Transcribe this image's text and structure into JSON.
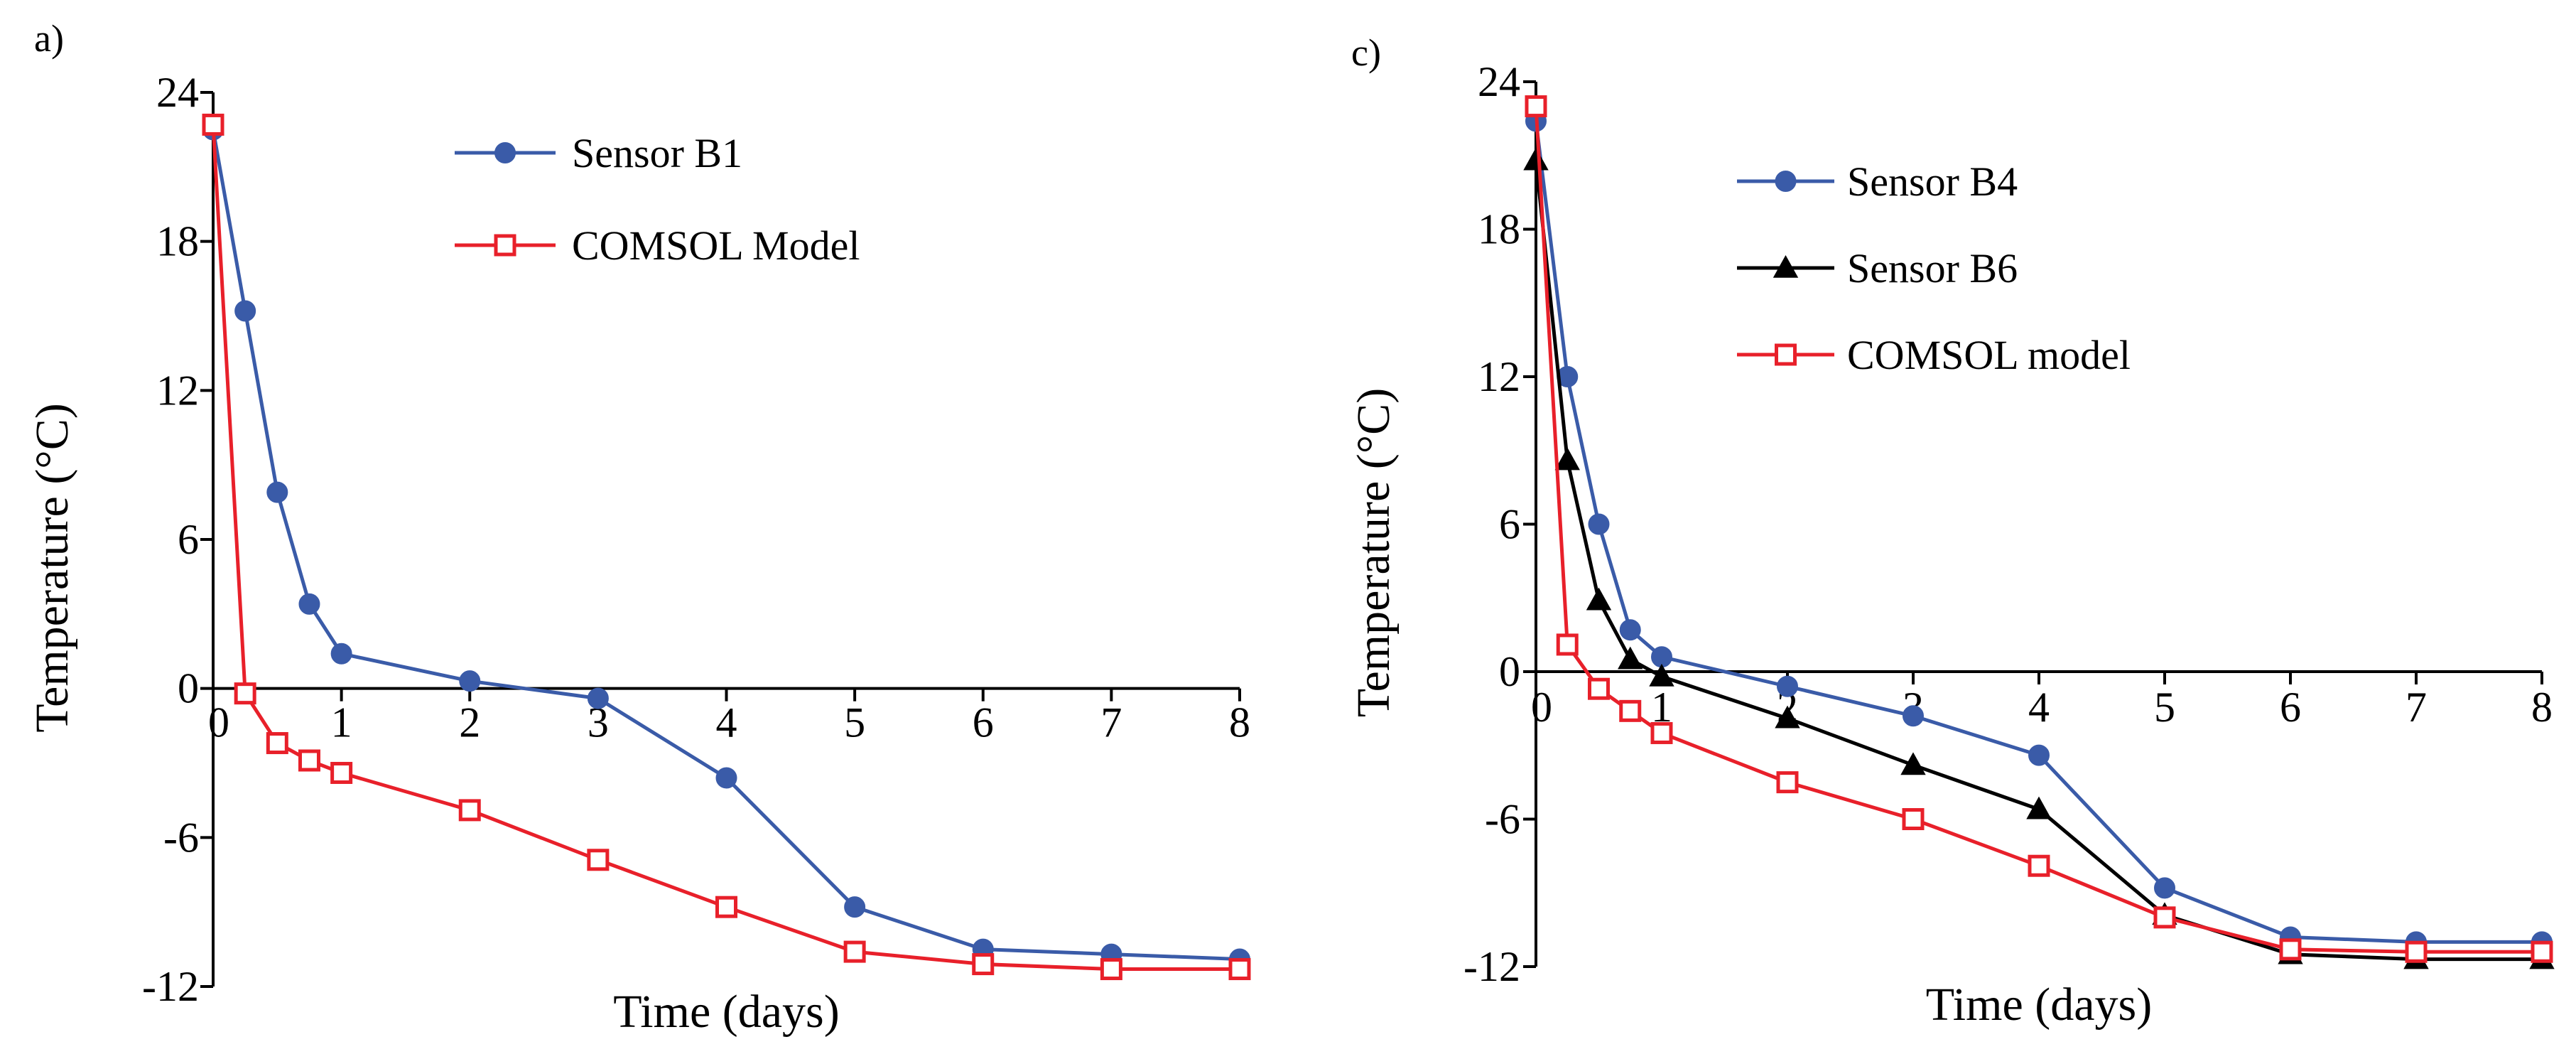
{
  "chart_data": [
    {
      "panel_label": "a)",
      "type": "line",
      "xlabel": "Time  (days)",
      "ylabel": "Temperature  (°C)",
      "xlim": [
        0,
        8
      ],
      "ylim": [
        -12,
        24
      ],
      "xticks": [
        "0",
        "1",
        "2",
        "3",
        "4",
        "5",
        "6",
        "7",
        "8"
      ],
      "yticks": [
        "-12",
        "-6",
        "0",
        "6",
        "12",
        "18",
        "24"
      ],
      "series": [
        {
          "name": "Sensor B1",
          "color": "#3a5ba8",
          "marker": "circle",
          "x": [
            0,
            0.25,
            0.5,
            0.75,
            1,
            2,
            3,
            4,
            5,
            6,
            7,
            8
          ],
          "y": [
            22.5,
            15.2,
            7.9,
            3.4,
            1.4,
            0.3,
            -0.4,
            -3.6,
            -8.8,
            -10.5,
            -10.7,
            -10.9
          ]
        },
        {
          "name": "COMSOL Model",
          "color": "#e8202a",
          "marker": "square-open",
          "x": [
            0,
            0.25,
            0.5,
            0.75,
            1,
            2,
            3,
            4,
            5,
            6,
            7,
            8
          ],
          "y": [
            22.7,
            -0.2,
            -2.2,
            -2.9,
            -3.4,
            -4.9,
            -6.9,
            -8.8,
            -10.6,
            -11.1,
            -11.3,
            -11.3
          ]
        }
      ]
    },
    {
      "panel_label": "c)",
      "type": "line",
      "xlabel": "Time  (days)",
      "ylabel": "Temperature  (°C)",
      "xlim": [
        0,
        8
      ],
      "ylim": [
        -12,
        24
      ],
      "xticks": [
        "0",
        "1",
        "2",
        "3",
        "4",
        "5",
        "6",
        "7",
        "8"
      ],
      "yticks": [
        "-12",
        "-6",
        "0",
        "6",
        "12",
        "18",
        "24"
      ],
      "series": [
        {
          "name": "Sensor B4",
          "color": "#3a5ba8",
          "marker": "circle",
          "x": [
            0,
            0.25,
            0.5,
            0.75,
            1,
            2,
            3,
            4,
            5,
            6,
            7,
            8
          ],
          "y": [
            22.4,
            12.0,
            6.0,
            1.7,
            0.6,
            -0.6,
            -1.8,
            -3.4,
            -8.8,
            -10.8,
            -11.0,
            -11.0
          ]
        },
        {
          "name": "Sensor B6",
          "color": "#000000",
          "marker": "triangle",
          "x": [
            0,
            0.25,
            0.5,
            0.75,
            1,
            2,
            3,
            4,
            5,
            6,
            7,
            8
          ],
          "y": [
            20.8,
            8.6,
            2.9,
            0.5,
            -0.2,
            -1.9,
            -3.8,
            -5.6,
            -9.9,
            -11.5,
            -11.7,
            -11.7
          ]
        },
        {
          "name": "COMSOL model",
          "color": "#e8202a",
          "marker": "square-open",
          "x": [
            0,
            0.25,
            0.5,
            0.75,
            1,
            2,
            3,
            4,
            5,
            6,
            7,
            8
          ],
          "y": [
            23.0,
            1.1,
            -0.7,
            -1.6,
            -2.5,
            -4.5,
            -6.0,
            -7.9,
            -10.0,
            -11.3,
            -11.4,
            -11.4
          ]
        }
      ]
    }
  ]
}
